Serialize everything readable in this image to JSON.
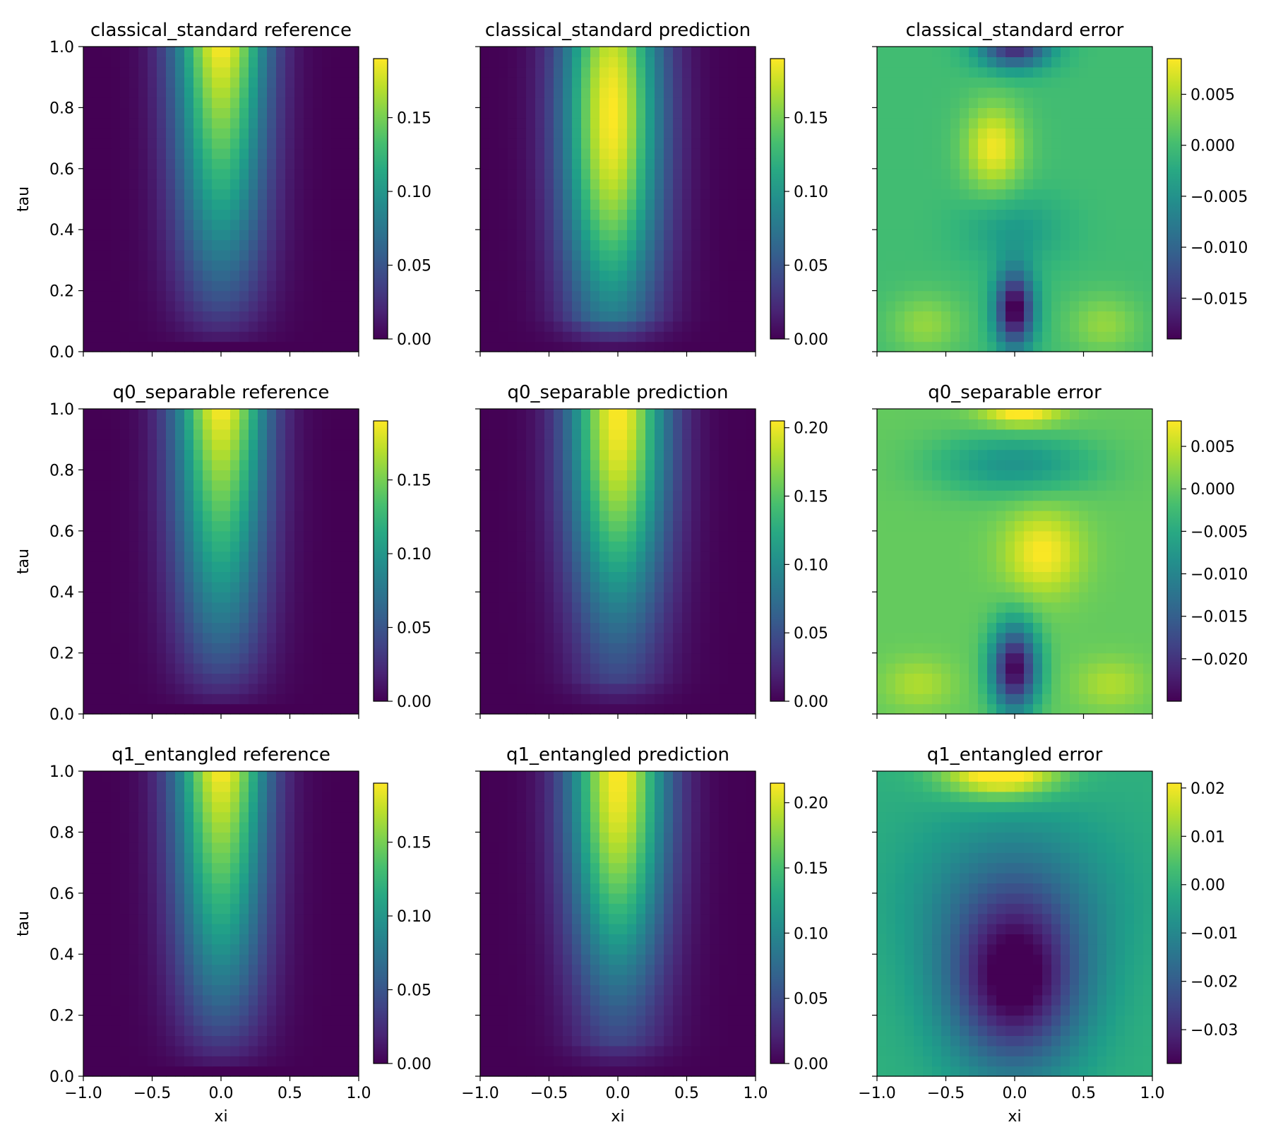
{
  "chart_data": [
    {
      "type": "heatmap",
      "title": "classical_standard reference",
      "xlabel": "",
      "ylabel": "tau",
      "xlim": [
        -1.0,
        1.0
      ],
      "ylim": [
        0.0,
        1.0
      ],
      "x_tick_labels": [],
      "y_tick_labels": [
        "0.0",
        "0.2",
        "0.4",
        "0.6",
        "0.8",
        "1.0"
      ],
      "field": {
        "kind": "reference",
        "peak": 0.19
      },
      "colorbar": {
        "range": [
          0.0,
          0.19
        ],
        "ticks": [
          0.0,
          0.05,
          0.1,
          0.15
        ],
        "tick_labels": [
          "0.00",
          "0.05",
          "0.10",
          "0.15"
        ]
      }
    },
    {
      "type": "heatmap",
      "title": "classical_standard prediction",
      "xlabel": "",
      "ylabel": "",
      "xlim": [
        -1.0,
        1.0
      ],
      "ylim": [
        0.0,
        1.0
      ],
      "x_tick_labels": [],
      "y_tick_labels": [],
      "field": {
        "kind": "prediction",
        "peak": 0.19,
        "center_x": -0.05,
        "peak_tau": 0.78
      },
      "colorbar": {
        "range": [
          0.0,
          0.19
        ],
        "ticks": [
          0.0,
          0.05,
          0.1,
          0.15
        ],
        "tick_labels": [
          "0.00",
          "0.05",
          "0.10",
          "0.15"
        ]
      }
    },
    {
      "type": "heatmap",
      "title": "classical_standard error",
      "xlabel": "",
      "ylabel": "",
      "xlim": [
        -1.0,
        1.0
      ],
      "ylim": [
        0.0,
        1.0
      ],
      "x_tick_labels": [],
      "y_tick_labels": [],
      "field": {
        "kind": "error",
        "base": 0.0,
        "blobs": [
          {
            "x": -0.15,
            "y": 0.67,
            "sx": 0.15,
            "sy": 0.1,
            "a": 0.008
          },
          {
            "x": 0.0,
            "y": 0.14,
            "sx": 0.1,
            "sy": 0.09,
            "a": -0.02
          },
          {
            "x": 0.0,
            "y": 1.0,
            "sx": 0.18,
            "sy": 0.05,
            "a": -0.016
          },
          {
            "x": -0.65,
            "y": 0.09,
            "sx": 0.18,
            "sy": 0.07,
            "a": 0.004
          },
          {
            "x": 0.65,
            "y": 0.09,
            "sx": 0.18,
            "sy": 0.07,
            "a": 0.004
          },
          {
            "x": 0.0,
            "y": 0.4,
            "sx": 0.25,
            "sy": 0.08,
            "a": -0.004
          }
        ]
      },
      "colorbar": {
        "range": [
          -0.019,
          0.0085
        ],
        "ticks": [
          -0.015,
          -0.01,
          -0.005,
          0.0,
          0.005
        ],
        "tick_labels": [
          "−0.015",
          "−0.010",
          "−0.005",
          "0.000",
          "0.005"
        ]
      }
    },
    {
      "type": "heatmap",
      "title": "q0_separable reference",
      "xlabel": "",
      "ylabel": "tau",
      "xlim": [
        -1.0,
        1.0
      ],
      "ylim": [
        0.0,
        1.0
      ],
      "x_tick_labels": [],
      "y_tick_labels": [
        "0.0",
        "0.2",
        "0.4",
        "0.6",
        "0.8",
        "1.0"
      ],
      "field": {
        "kind": "reference",
        "peak": 0.19
      },
      "colorbar": {
        "range": [
          0.0,
          0.19
        ],
        "ticks": [
          0.0,
          0.05,
          0.1,
          0.15
        ],
        "tick_labels": [
          "0.00",
          "0.05",
          "0.10",
          "0.15"
        ]
      }
    },
    {
      "type": "heatmap",
      "title": "q0_separable prediction",
      "xlabel": "",
      "ylabel": "",
      "xlim": [
        -1.0,
        1.0
      ],
      "ylim": [
        0.0,
        1.0
      ],
      "x_tick_labels": [],
      "y_tick_labels": [],
      "field": {
        "kind": "prediction",
        "peak": 0.205,
        "center_x": 0.0,
        "peak_tau": 1.0
      },
      "colorbar": {
        "range": [
          0.0,
          0.205
        ],
        "ticks": [
          0.0,
          0.05,
          0.1,
          0.15,
          0.2
        ],
        "tick_labels": [
          "0.00",
          "0.05",
          "0.10",
          "0.15",
          "0.20"
        ]
      }
    },
    {
      "type": "heatmap",
      "title": "q0_separable error",
      "xlabel": "",
      "ylabel": "",
      "xlim": [
        -1.0,
        1.0
      ],
      "ylim": [
        0.0,
        1.0
      ],
      "x_tick_labels": [],
      "y_tick_labels": [],
      "field": {
        "kind": "error",
        "base": 0.0,
        "blobs": [
          {
            "x": 0.0,
            "y": 0.15,
            "sx": 0.12,
            "sy": 0.1,
            "a": -0.025
          },
          {
            "x": 0.2,
            "y": 0.53,
            "sx": 0.2,
            "sy": 0.1,
            "a": 0.008
          },
          {
            "x": 0.0,
            "y": 0.82,
            "sx": 0.4,
            "sy": 0.07,
            "a": -0.008
          },
          {
            "x": 0.05,
            "y": 1.0,
            "sx": 0.2,
            "sy": 0.04,
            "a": 0.01
          },
          {
            "x": -0.7,
            "y": 0.1,
            "sx": 0.18,
            "sy": 0.06,
            "a": 0.004
          },
          {
            "x": 0.7,
            "y": 0.1,
            "sx": 0.18,
            "sy": 0.06,
            "a": 0.004
          }
        ]
      },
      "colorbar": {
        "range": [
          -0.025,
          0.008
        ],
        "ticks": [
          -0.02,
          -0.015,
          -0.01,
          -0.005,
          0.0,
          0.005
        ],
        "tick_labels": [
          "−0.020",
          "−0.015",
          "−0.010",
          "−0.005",
          "0.000",
          "0.005"
        ]
      }
    },
    {
      "type": "heatmap",
      "title": "q1_entangled reference",
      "xlabel": "xi",
      "ylabel": "tau",
      "xlim": [
        -1.0,
        1.0
      ],
      "ylim": [
        0.0,
        1.0
      ],
      "x_tick_labels": [
        "−1.0",
        "−0.5",
        "0.0",
        "0.5",
        "1.0"
      ],
      "y_tick_labels": [
        "0.0",
        "0.2",
        "0.4",
        "0.6",
        "0.8",
        "1.0"
      ],
      "field": {
        "kind": "reference",
        "peak": 0.19
      },
      "colorbar": {
        "range": [
          0.0,
          0.19
        ],
        "ticks": [
          0.0,
          0.05,
          0.1,
          0.15
        ],
        "tick_labels": [
          "0.00",
          "0.05",
          "0.10",
          "0.15"
        ]
      }
    },
    {
      "type": "heatmap",
      "title": "q1_entangled prediction",
      "xlabel": "xi",
      "ylabel": "",
      "xlim": [
        -1.0,
        1.0
      ],
      "ylim": [
        0.0,
        1.0
      ],
      "x_tick_labels": [
        "−1.0",
        "−0.5",
        "0.0",
        "0.5",
        "1.0"
      ],
      "y_tick_labels": [],
      "field": {
        "kind": "prediction",
        "peak": 0.215,
        "center_x": 0.0,
        "peak_tau": 1.0
      },
      "colorbar": {
        "range": [
          0.0,
          0.215
        ],
        "ticks": [
          0.0,
          0.05,
          0.1,
          0.15,
          0.2
        ],
        "tick_labels": [
          "0.00",
          "0.05",
          "0.10",
          "0.15",
          "0.20"
        ]
      }
    },
    {
      "type": "heatmap",
      "title": "q1_entangled error",
      "xlabel": "xi",
      "ylabel": "",
      "xlim": [
        -1.0,
        1.0
      ],
      "ylim": [
        0.0,
        1.0
      ],
      "x_tick_labels": [
        "−1.0",
        "−0.5",
        "0.0",
        "0.5",
        "1.0"
      ],
      "y_tick_labels": [],
      "field": {
        "kind": "error",
        "base": 0.0,
        "blobs": [
          {
            "x": 0.0,
            "y": 0.3,
            "sx": 0.35,
            "sy": 0.2,
            "a": -0.037
          },
          {
            "x": 0.0,
            "y": 0.6,
            "sx": 0.55,
            "sy": 0.2,
            "a": -0.012
          },
          {
            "x": -0.1,
            "y": 1.0,
            "sx": 0.3,
            "sy": 0.06,
            "a": 0.028
          }
        ]
      },
      "colorbar": {
        "range": [
          -0.037,
          0.021
        ],
        "ticks": [
          -0.03,
          -0.02,
          -0.01,
          0.0,
          0.01,
          0.02
        ],
        "tick_labels": [
          "−0.03",
          "−0.02",
          "−0.01",
          "0.00",
          "0.01",
          "0.02"
        ]
      }
    }
  ]
}
